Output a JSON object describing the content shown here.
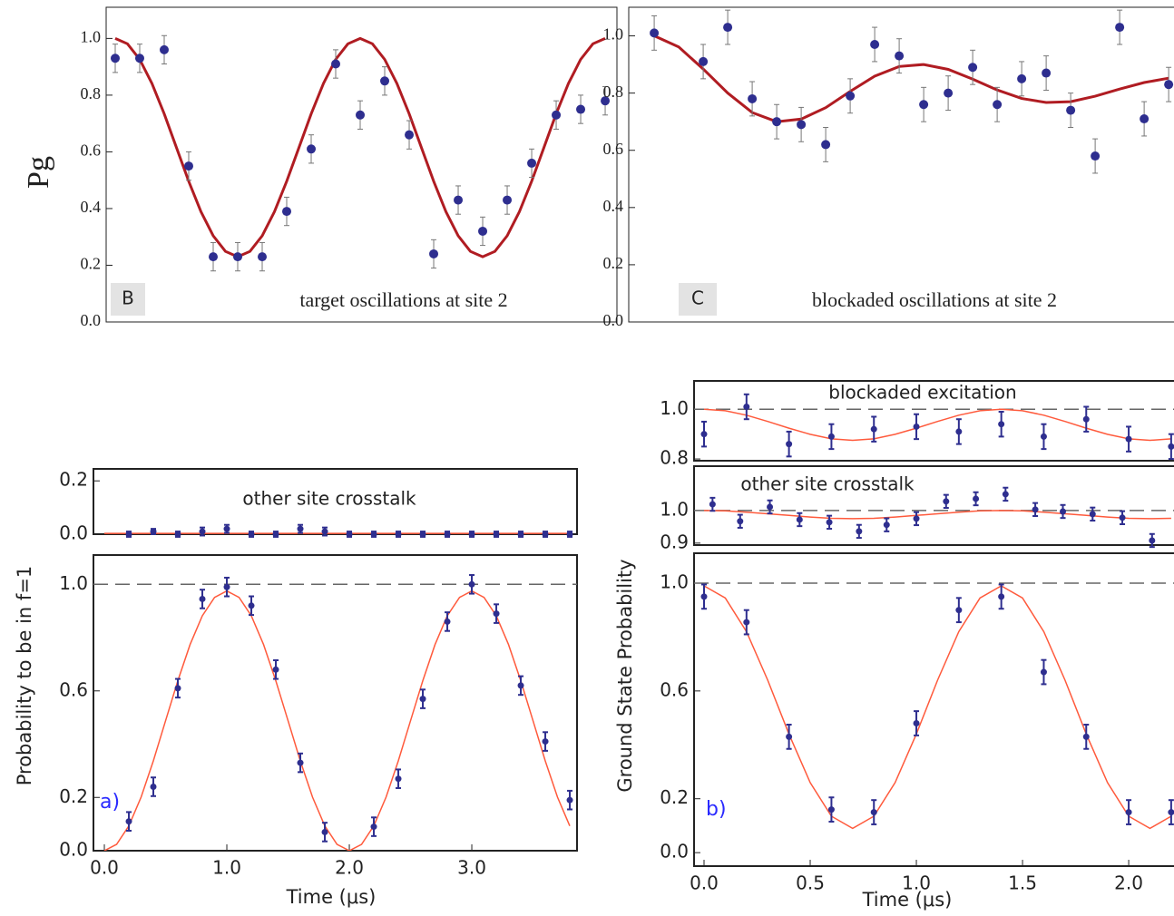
{
  "chart_data": [
    {
      "type": "scatter",
      "ylabel": "Pg",
      "label": "B",
      "annotation": "target oscillations at site 2",
      "ylim": [
        0,
        1.11
      ],
      "xlim": [
        -0.37,
        20.48
      ],
      "yticks": [
        {
          "value": 0,
          "label": "0.0"
        },
        {
          "value": 0.2,
          "label": "0.2"
        },
        {
          "value": 0.4,
          "label": "0.4"
        },
        {
          "value": 0.6,
          "label": "0.6"
        },
        {
          "value": 0.8,
          "label": "0.8"
        },
        {
          "value": 1,
          "label": "1.0"
        }
      ],
      "points": {
        "color": "#2e2e8f",
        "x": [
          0,
          1,
          2,
          3,
          4,
          5,
          6,
          7,
          8,
          9,
          10,
          11,
          12,
          13,
          14,
          15,
          16,
          17,
          18,
          19,
          20
        ],
        "values": [
          0.93,
          0.93,
          0.96,
          0.55,
          0.23,
          0.23,
          0.23,
          0.39,
          0.61,
          0.91,
          0.73,
          0.85,
          0.66,
          0.24,
          0.43,
          0.32,
          0.43,
          0.56,
          0.73,
          0.75,
          0.78
        ],
        "errors": [
          0.05,
          0.05,
          0.05,
          0.05,
          0.05,
          0.05,
          0.05,
          0.05,
          0.05,
          0.05,
          0.05,
          0.05,
          0.05,
          0.05,
          0.05,
          0.05,
          0.05,
          0.05,
          0.05,
          0.05,
          0.05
        ]
      },
      "fit": {
        "color": "#b01c22",
        "x": [
          0,
          0.5,
          1,
          1.5,
          2,
          2.5,
          3,
          3.5,
          4,
          4.5,
          5,
          5.5,
          6,
          6.5,
          7,
          7.5,
          8,
          8.5,
          9,
          9.5,
          10,
          10.5,
          11,
          11.5,
          12,
          12.5,
          13,
          13.5,
          14,
          14.5,
          15,
          15.5,
          16,
          16.5,
          17,
          17.5,
          18,
          18.5,
          19,
          19.5,
          20
        ],
        "values": [
          1.0,
          0.981,
          0.926,
          0.841,
          0.734,
          0.615,
          0.496,
          0.389,
          0.304,
          0.249,
          0.23,
          0.249,
          0.304,
          0.389,
          0.496,
          0.615,
          0.734,
          0.841,
          0.926,
          0.981,
          1.0,
          0.981,
          0.926,
          0.841,
          0.734,
          0.615,
          0.496,
          0.389,
          0.304,
          0.249,
          0.23,
          0.249,
          0.304,
          0.389,
          0.496,
          0.615,
          0.734,
          0.841,
          0.926,
          0.981,
          1.0
        ]
      }
    },
    {
      "type": "scatter",
      "label": "C",
      "annotation": "blockaded oscillations at site 2",
      "ylim": [
        0,
        1.1
      ],
      "xlim": [
        -1.04,
        21.44
      ],
      "yticks": [
        {
          "value": 0,
          "label": "0.0"
        },
        {
          "value": 0.2,
          "label": "0.2"
        },
        {
          "value": 0.4,
          "label": "0.4"
        },
        {
          "value": 0.6,
          "label": "0.6"
        },
        {
          "value": 0.8,
          "label": "0.8"
        },
        {
          "value": 1,
          "label": "1.0"
        }
      ],
      "points": {
        "color": "#2e2e8f",
        "x": [
          0,
          2,
          3,
          4,
          5,
          6,
          7,
          8,
          9,
          10,
          11,
          12,
          13,
          14,
          15,
          16,
          17,
          18,
          19,
          20,
          21
        ],
        "values": [
          1.01,
          0.91,
          1.03,
          0.78,
          0.7,
          0.69,
          0.62,
          0.79,
          0.97,
          0.93,
          0.76,
          0.8,
          0.89,
          0.76,
          0.85,
          0.87,
          0.74,
          0.58,
          1.03,
          0.71,
          0.83
        ],
        "errors": [
          0.06,
          0.06,
          0.06,
          0.06,
          0.06,
          0.06,
          0.06,
          0.06,
          0.06,
          0.06,
          0.06,
          0.06,
          0.06,
          0.06,
          0.06,
          0.06,
          0.06,
          0.06,
          0.06,
          0.06,
          0.06
        ]
      },
      "fit": {
        "color": "#b01c22",
        "x": [
          0,
          1,
          2,
          3,
          4,
          5,
          6,
          7,
          8,
          9,
          10,
          11,
          12,
          13,
          14,
          15,
          16,
          17,
          18,
          19,
          20,
          21
        ],
        "values": [
          1.0,
          0.961,
          0.884,
          0.8,
          0.732,
          0.7,
          0.709,
          0.749,
          0.806,
          0.859,
          0.893,
          0.9,
          0.883,
          0.849,
          0.811,
          0.781,
          0.767,
          0.77,
          0.789,
          0.814,
          0.837,
          0.852
        ]
      }
    },
    {
      "type": "scatter",
      "annotation": "other site crosstalk",
      "ylim": [
        0,
        0.245
      ],
      "xlim": [
        -0.089,
        3.859
      ],
      "yticks": [
        {
          "value": 0,
          "label": "0.0"
        },
        {
          "value": 0.2,
          "label": "0.2"
        }
      ],
      "points": {
        "color": "#2e2e8f",
        "x": [
          0.2,
          0.4,
          0.6,
          0.8,
          1.0,
          1.2,
          1.4,
          1.6,
          1.8,
          2.0,
          2.2,
          2.4,
          2.6,
          2.8,
          3.0,
          3.2,
          3.4,
          3.6,
          3.8
        ],
        "values": [
          0,
          0.01,
          0,
          0.01,
          0.02,
          0,
          0,
          0.02,
          0.01,
          0,
          0,
          0,
          0,
          0,
          0,
          0,
          0,
          0,
          0
        ],
        "errors": [
          0.01,
          0.01,
          0.01,
          0.015,
          0.015,
          0.01,
          0.01,
          0.015,
          0.015,
          0.01,
          0.01,
          0.01,
          0.01,
          0.01,
          0.01,
          0.01,
          0.01,
          0.01,
          0.01
        ]
      },
      "fit": {
        "color": "#ff5a3c",
        "x": [
          0,
          3.8
        ],
        "values": [
          0.003,
          0.003
        ]
      }
    },
    {
      "type": "scatter",
      "ylabel": "Probability to be in f=1",
      "xlabel": "Time (μs)",
      "label": "a)",
      "hline": 1,
      "ylim": [
        0,
        1.11
      ],
      "xlim": [
        -0.089,
        3.859
      ],
      "yticks": [
        {
          "value": 0,
          "label": "0.0"
        },
        0.2,
        0.6,
        {
          "value": 1,
          "label": "1.0"
        }
      ],
      "xticks": [
        {
          "value": 0,
          "label": "0.0"
        },
        {
          "value": 1,
          "label": "1.0"
        },
        {
          "value": 2,
          "label": "2.0"
        },
        {
          "value": 3,
          "label": "3.0"
        }
      ],
      "points": {
        "color": "#2e2e8f",
        "x": [
          0.2,
          0.4,
          0.6,
          0.8,
          1.0,
          1.2,
          1.4,
          1.6,
          1.8,
          2.2,
          2.4,
          2.6,
          2.8,
          3.0,
          3.2,
          3.4,
          3.6,
          3.8
        ],
        "values": [
          0.11,
          0.24,
          0.61,
          0.945,
          0.99,
          0.92,
          0.68,
          0.33,
          0.07,
          0.09,
          0.27,
          0.57,
          0.86,
          1.0,
          0.89,
          0.62,
          0.41,
          0.19
        ],
        "errors": [
          0.035,
          0.035,
          0.035,
          0.035,
          0.035,
          0.035,
          0.035,
          0.035,
          0.035,
          0.035,
          0.035,
          0.035,
          0.035,
          0.035,
          0.035,
          0.035,
          0.035,
          0.035
        ]
      },
      "fit": {
        "color": "#ff5a3c",
        "x": [
          0,
          0.1,
          0.2,
          0.3,
          0.4,
          0.5,
          0.6,
          0.7,
          0.8,
          0.9,
          1.0,
          1.1,
          1.2,
          1.3,
          1.4,
          1.5,
          1.6,
          1.7,
          1.8,
          1.9,
          2.0,
          2.1,
          2.2,
          2.3,
          2.4,
          2.5,
          2.6,
          2.7,
          2.8,
          2.9,
          3.0,
          3.1,
          3.2,
          3.3,
          3.4,
          3.5,
          3.6,
          3.7,
          3.8
        ],
        "values": [
          0,
          0.024,
          0.093,
          0.201,
          0.337,
          0.488,
          0.638,
          0.774,
          0.882,
          0.951,
          0.975,
          0.951,
          0.882,
          0.774,
          0.638,
          0.488,
          0.337,
          0.201,
          0.093,
          0.024,
          0,
          0.024,
          0.093,
          0.201,
          0.337,
          0.488,
          0.638,
          0.774,
          0.882,
          0.951,
          0.975,
          0.951,
          0.882,
          0.774,
          0.638,
          0.488,
          0.337,
          0.201,
          0.093
        ]
      }
    },
    {
      "type": "scatter",
      "annotation": "blockaded excitation",
      "hline": 1,
      "ylim": [
        0.793,
        1.114
      ],
      "xlim": [
        -0.047,
        2.239
      ],
      "yticks": [
        0.8,
        {
          "value": 1,
          "label": "1.0"
        }
      ],
      "points": {
        "color": "#2e2e8f",
        "x": [
          0,
          0.2,
          0.4,
          0.6,
          0.8,
          1.0,
          1.2,
          1.4,
          1.6,
          1.8,
          2.0,
          2.2
        ],
        "values": [
          0.9,
          1.01,
          0.86,
          0.89,
          0.92,
          0.93,
          0.91,
          0.94,
          0.89,
          0.96,
          0.88,
          0.85
        ],
        "errors": [
          0.05,
          0.05,
          0.05,
          0.05,
          0.05,
          0.05,
          0.05,
          0.05,
          0.05,
          0.05,
          0.05,
          0.05
        ]
      },
      "fit": {
        "color": "#ff5a3c",
        "x": [
          0,
          0.1,
          0.2,
          0.3,
          0.4,
          0.5,
          0.6,
          0.7,
          0.8,
          0.9,
          1.0,
          1.1,
          1.2,
          1.3,
          1.4,
          1.5,
          1.6,
          1.7,
          1.8,
          1.9,
          2.0,
          2.1,
          2.2
        ],
        "values": [
          1.0,
          0.994,
          0.976,
          0.951,
          0.924,
          0.899,
          0.881,
          0.875,
          0.881,
          0.899,
          0.924,
          0.951,
          0.976,
          0.994,
          1.0,
          0.994,
          0.976,
          0.951,
          0.924,
          0.899,
          0.881,
          0.875,
          0.881
        ]
      }
    },
    {
      "type": "scatter",
      "annotation": "other site crosstalk",
      "hline": 1,
      "ylim": [
        0.894,
        1.136
      ],
      "xlim": [
        -0.047,
        2.239
      ],
      "yticks": [
        0.9,
        {
          "value": 1,
          "label": "1.0"
        }
      ],
      "points": {
        "color": "#2e2e8f",
        "x": [
          0.04,
          0.17,
          0.31,
          0.45,
          0.59,
          0.73,
          0.86,
          1.0,
          1.14,
          1.28,
          1.42,
          1.56,
          1.69,
          1.83,
          1.97,
          2.11
        ],
        "values": [
          1.019,
          0.967,
          1.011,
          0.972,
          0.964,
          0.936,
          0.956,
          0.975,
          1.028,
          1.036,
          1.05,
          1.003,
          0.997,
          0.989,
          0.978,
          0.908
        ],
        "errors": [
          0.02,
          0.02,
          0.02,
          0.02,
          0.02,
          0.02,
          0.02,
          0.02,
          0.02,
          0.02,
          0.02,
          0.02,
          0.02,
          0.02,
          0.02,
          0.02
        ]
      },
      "fit": {
        "color": "#ff5a3c",
        "x": [
          0,
          0.1,
          0.2,
          0.3,
          0.4,
          0.5,
          0.6,
          0.7,
          0.8,
          0.9,
          1.0,
          1.1,
          1.2,
          1.3,
          1.4,
          1.5,
          1.6,
          1.7,
          1.8,
          1.9,
          2.0,
          2.1,
          2.2
        ],
        "values": [
          1.0,
          0.999,
          0.995,
          0.99,
          0.985,
          0.98,
          0.976,
          0.975,
          0.976,
          0.98,
          0.985,
          0.99,
          0.995,
          0.999,
          1.0,
          0.999,
          0.995,
          0.99,
          0.985,
          0.98,
          0.976,
          0.975,
          0.976
        ]
      }
    },
    {
      "type": "scatter",
      "ylabel": "Ground State Probability",
      "xlabel": "Time (μs)",
      "label": "b)",
      "hline": 1,
      "ylim": [
        -0.05,
        1.111
      ],
      "xlim": [
        -0.047,
        2.239
      ],
      "yticks": [
        {
          "value": 0,
          "label": "0.0"
        },
        0.2,
        0.6,
        {
          "value": 1,
          "label": "1.0"
        }
      ],
      "xticks": [
        {
          "value": 0,
          "label": "0.0"
        },
        0.5,
        {
          "value": 1,
          "label": "1.0"
        },
        1.5,
        {
          "value": 2,
          "label": "2.0"
        }
      ],
      "points": {
        "color": "#2e2e8f",
        "x": [
          0,
          0.2,
          0.4,
          0.6,
          0.8,
          1.0,
          1.2,
          1.4,
          1.6,
          1.8,
          2.0,
          2.2
        ],
        "values": [
          0.95,
          0.855,
          0.43,
          0.16,
          0.15,
          0.48,
          0.9,
          0.95,
          0.67,
          0.43,
          0.15,
          0.15
        ],
        "errors": [
          0.045,
          0.045,
          0.045,
          0.045,
          0.045,
          0.045,
          0.045,
          0.045,
          0.045,
          0.045,
          0.045,
          0.045
        ]
      },
      "fit": {
        "color": "#ff5a3c",
        "x": [
          0,
          0.1,
          0.2,
          0.3,
          0.4,
          0.5,
          0.6,
          0.7,
          0.8,
          0.9,
          1.0,
          1.1,
          1.2,
          1.3,
          1.4,
          1.5,
          1.6,
          1.7,
          1.8,
          1.9,
          2.0,
          2.1,
          2.2
        ],
        "values": [
          0.99,
          0.945,
          0.82,
          0.64,
          0.44,
          0.26,
          0.135,
          0.09,
          0.135,
          0.26,
          0.44,
          0.64,
          0.82,
          0.945,
          0.99,
          0.945,
          0.82,
          0.64,
          0.44,
          0.26,
          0.135,
          0.09,
          0.135
        ]
      }
    }
  ]
}
